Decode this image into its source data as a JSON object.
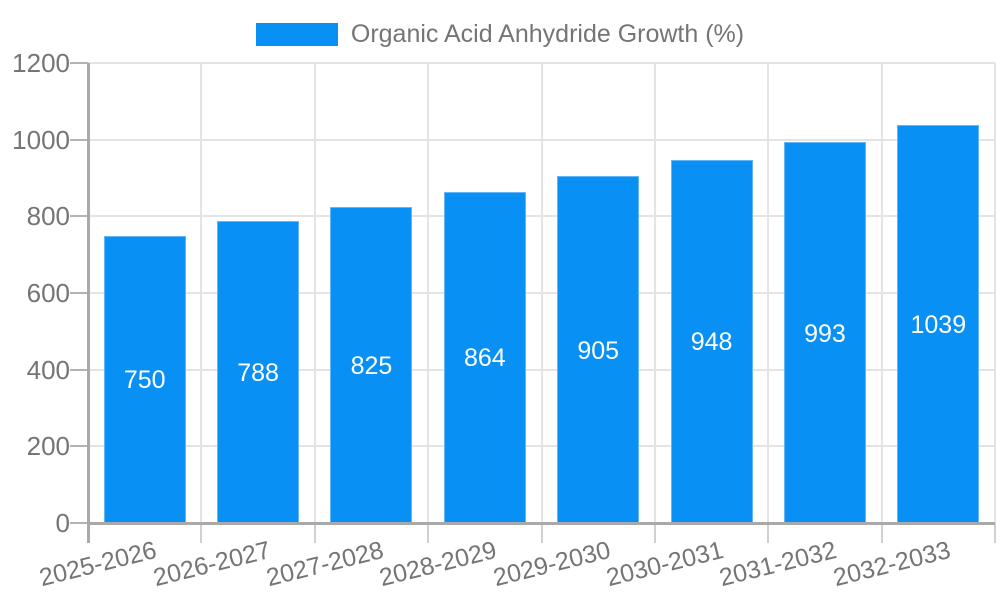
{
  "chart_data": {
    "type": "bar",
    "title": "Organic Acid Anhydride Growth (%)",
    "categories": [
      "2025-2026",
      "2026-2027",
      "2027-2028",
      "2028-2029",
      "2029-2030",
      "2030-2031",
      "2031-2032",
      "2032-2033"
    ],
    "values": [
      750,
      788,
      825,
      864,
      905,
      948,
      993,
      1039
    ],
    "ylim": [
      0,
      1200
    ],
    "ytick_step": 200,
    "ytick_labels": [
      "0",
      "200",
      "400",
      "600",
      "800",
      "1000",
      "1200"
    ],
    "grid": true,
    "legend_position": "top-center",
    "value_labels_inside_bars": true,
    "colors": {
      "bar": "#0990f5",
      "bar_border": "#63b6f7",
      "value_text": "#ffffff",
      "axis_text": "#757575",
      "gridline": "#e4e4e4",
      "axis_line": "#a9a9a9",
      "background": "#ffffff"
    }
  }
}
